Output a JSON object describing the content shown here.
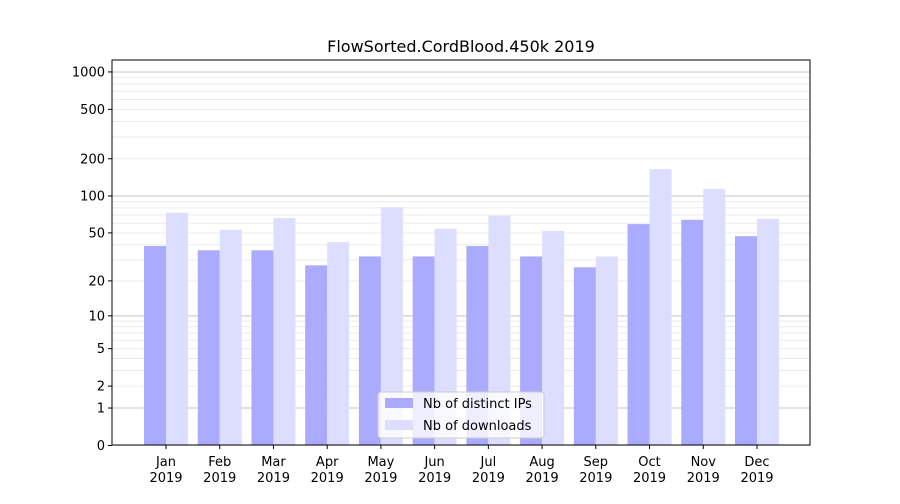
{
  "chart_data": {
    "type": "bar",
    "title": "FlowSorted.CordBlood.450k 2019",
    "xlabel": "",
    "ylabel": "",
    "yscale": "log(1+y)",
    "ylim": [
      0,
      1200
    ],
    "yticks": [
      0,
      1,
      2,
      5,
      10,
      20,
      50,
      100,
      200,
      500,
      1000
    ],
    "grid": true,
    "legend_position": "lower center",
    "categories": [
      "Jan\n2019",
      "Feb\n2019",
      "Mar\n2019",
      "Apr\n2019",
      "May\n2019",
      "Jun\n2019",
      "Jul\n2019",
      "Aug\n2019",
      "Sep\n2019",
      "Oct\n2019",
      "Nov\n2019",
      "Dec\n2019"
    ],
    "series": [
      {
        "name": "Nb of distinct IPs",
        "color": "#aaaaff",
        "values": [
          39,
          36,
          36,
          27,
          32,
          32,
          39,
          32,
          26,
          59,
          64,
          47
        ]
      },
      {
        "name": "Nb of downloads",
        "color": "#ddddff",
        "values": [
          73,
          53,
          66,
          42,
          81,
          54,
          69,
          52,
          32,
          165,
          114,
          65
        ]
      }
    ]
  }
}
